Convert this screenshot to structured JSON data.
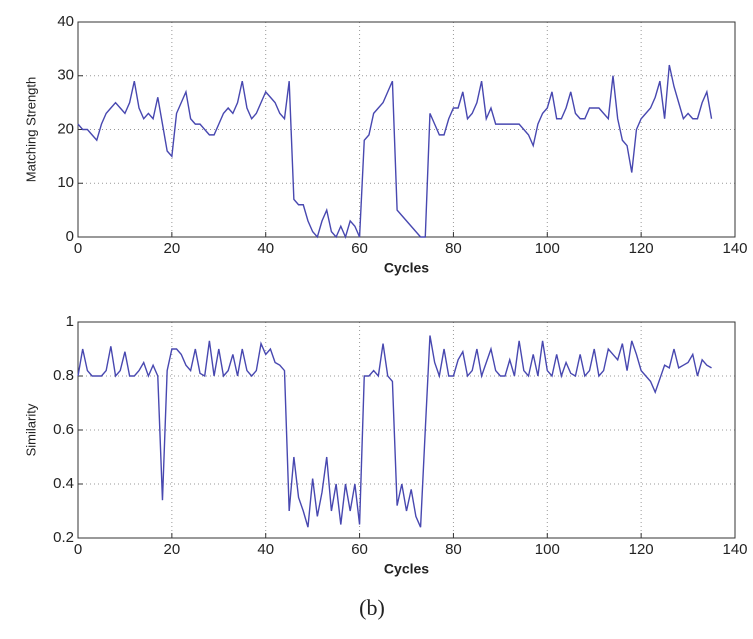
{
  "chart_data": [
    {
      "type": "line",
      "xlabel": "Cycles",
      "ylabel": "Matching Strength",
      "xlim": [
        0,
        140
      ],
      "xticks": [
        0,
        20,
        40,
        60,
        80,
        100,
        120,
        140
      ],
      "ylim": [
        0,
        40
      ],
      "yticks": [
        0,
        10,
        20,
        30,
        40
      ],
      "grid": true,
      "x": [
        0,
        1,
        2,
        3,
        4,
        5,
        6,
        7,
        8,
        9,
        10,
        11,
        12,
        13,
        14,
        15,
        16,
        17,
        18,
        19,
        20,
        21,
        22,
        23,
        24,
        25,
        26,
        27,
        28,
        29,
        30,
        31,
        32,
        33,
        34,
        35,
        36,
        37,
        38,
        39,
        40,
        41,
        42,
        43,
        44,
        45,
        46,
        47,
        48,
        49,
        50,
        51,
        52,
        53,
        54,
        55,
        56,
        57,
        58,
        59,
        60,
        61,
        62,
        63,
        64,
        65,
        66,
        67,
        68,
        69,
        70,
        71,
        72,
        73,
        74,
        75,
        76,
        77,
        78,
        79,
        80,
        81,
        82,
        83,
        84,
        85,
        86,
        87,
        88,
        89,
        90,
        91,
        92,
        93,
        94,
        95,
        96,
        97,
        98,
        99,
        100,
        101,
        102,
        103,
        104,
        105,
        106,
        107,
        108,
        109,
        110,
        111,
        112,
        113,
        114,
        115,
        116,
        117,
        118,
        119,
        120,
        121,
        122,
        123,
        124,
        125,
        126,
        127,
        128,
        129,
        130,
        131,
        132,
        133,
        134,
        135
      ],
      "series": [
        {
          "color": "#4848b0",
          "values": [
            21,
            20,
            20,
            19,
            18,
            21,
            23,
            24,
            25,
            24,
            23,
            25,
            29,
            24,
            22,
            23,
            22,
            26,
            21,
            16,
            15,
            23,
            25,
            27,
            22,
            21,
            21,
            20,
            19,
            19,
            21,
            23,
            24,
            23,
            25,
            29,
            24,
            22,
            23,
            25,
            27,
            26,
            25,
            23,
            22,
            29,
            7,
            6,
            6,
            3,
            1,
            0,
            3,
            5,
            1,
            0,
            2,
            0,
            3,
            2,
            0,
            18,
            19,
            23,
            24,
            25,
            27,
            29,
            5,
            4,
            3,
            2,
            1,
            0,
            0,
            23,
            21,
            19,
            19,
            22,
            24,
            24,
            27,
            22,
            23,
            25,
            29,
            22,
            24,
            21,
            21,
            21,
            21,
            21,
            21,
            20,
            19,
            17,
            21,
            23,
            24,
            27,
            22,
            22,
            24,
            27,
            23,
            22,
            22,
            24,
            24,
            24,
            23,
            22,
            30,
            22,
            18,
            17,
            12,
            20,
            22,
            23,
            24,
            26,
            29,
            22,
            32,
            28,
            25,
            22,
            23,
            22,
            22,
            25,
            27,
            22
          ]
        }
      ]
    },
    {
      "type": "line",
      "xlabel": "Cycles",
      "ylabel": "Similarity",
      "xlim": [
        0,
        140
      ],
      "xticks": [
        0,
        20,
        40,
        60,
        80,
        100,
        120,
        140
      ],
      "ylim": [
        0.2,
        1
      ],
      "yticks": [
        0.2,
        0.4,
        0.6,
        0.8,
        1
      ],
      "grid": true,
      "x": [
        0,
        1,
        2,
        3,
        4,
        5,
        6,
        7,
        8,
        9,
        10,
        11,
        12,
        13,
        14,
        15,
        16,
        17,
        18,
        19,
        20,
        21,
        22,
        23,
        24,
        25,
        26,
        27,
        28,
        29,
        30,
        31,
        32,
        33,
        34,
        35,
        36,
        37,
        38,
        39,
        40,
        41,
        42,
        43,
        44,
        45,
        46,
        47,
        48,
        49,
        50,
        51,
        52,
        53,
        54,
        55,
        56,
        57,
        58,
        59,
        60,
        61,
        62,
        63,
        64,
        65,
        66,
        67,
        68,
        69,
        70,
        71,
        72,
        73,
        74,
        75,
        76,
        77,
        78,
        79,
        80,
        81,
        82,
        83,
        84,
        85,
        86,
        87,
        88,
        89,
        90,
        91,
        92,
        93,
        94,
        95,
        96,
        97,
        98,
        99,
        100,
        101,
        102,
        103,
        104,
        105,
        106,
        107,
        108,
        109,
        110,
        111,
        112,
        113,
        114,
        115,
        116,
        117,
        118,
        119,
        120,
        121,
        122,
        123,
        124,
        125,
        126,
        127,
        128,
        129,
        130,
        131,
        132,
        133,
        134,
        135
      ],
      "series": [
        {
          "color": "#4848b0",
          "values": [
            0.8,
            0.9,
            0.82,
            0.8,
            0.8,
            0.8,
            0.82,
            0.91,
            0.8,
            0.82,
            0.89,
            0.8,
            0.8,
            0.82,
            0.85,
            0.8,
            0.84,
            0.8,
            0.34,
            0.82,
            0.9,
            0.9,
            0.88,
            0.84,
            0.82,
            0.9,
            0.81,
            0.8,
            0.93,
            0.8,
            0.9,
            0.8,
            0.82,
            0.88,
            0.8,
            0.9,
            0.82,
            0.8,
            0.82,
            0.92,
            0.88,
            0.9,
            0.85,
            0.84,
            0.82,
            0.3,
            0.5,
            0.35,
            0.3,
            0.24,
            0.42,
            0.28,
            0.37,
            0.5,
            0.3,
            0.4,
            0.25,
            0.4,
            0.3,
            0.4,
            0.25,
            0.8,
            0.8,
            0.82,
            0.8,
            0.92,
            0.8,
            0.78,
            0.32,
            0.4,
            0.3,
            0.38,
            0.28,
            0.24,
            0.6,
            0.95,
            0.85,
            0.8,
            0.9,
            0.8,
            0.8,
            0.86,
            0.89,
            0.8,
            0.82,
            0.9,
            0.8,
            0.85,
            0.9,
            0.82,
            0.8,
            0.8,
            0.86,
            0.8,
            0.93,
            0.82,
            0.8,
            0.88,
            0.8,
            0.93,
            0.82,
            0.8,
            0.88,
            0.8,
            0.85,
            0.81,
            0.8,
            0.88,
            0.8,
            0.82,
            0.9,
            0.8,
            0.82,
            0.9,
            0.88,
            0.86,
            0.92,
            0.82,
            0.93,
            0.88,
            0.82,
            0.8,
            0.78,
            0.74,
            0.79,
            0.84,
            0.83,
            0.9,
            0.83,
            0.84,
            0.85,
            0.88,
            0.8,
            0.86,
            0.84,
            0.83
          ]
        }
      ]
    }
  ],
  "caption": "(b)"
}
